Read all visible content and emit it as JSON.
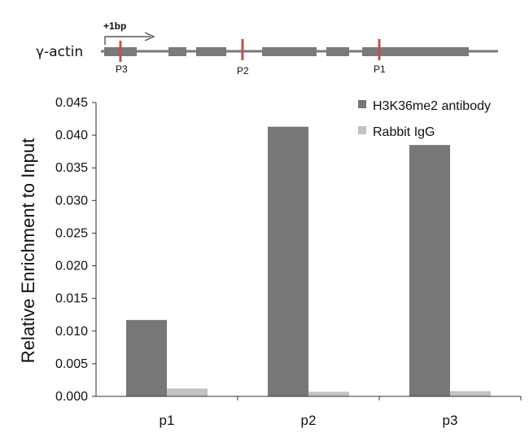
{
  "gene_map": {
    "gene_label": "γ-actin",
    "tss_label": "+1bp",
    "sites": [
      {
        "label": "P3"
      },
      {
        "label": "P2"
      },
      {
        "label": "P1"
      }
    ],
    "exon_color": "#7a7a7a",
    "site_color": "#c0504d"
  },
  "chart_data": {
    "type": "bar",
    "categories": [
      "p1",
      "p2",
      "p3"
    ],
    "series": [
      {
        "name": "H3K36me2 antibody",
        "color": "#777777",
        "values": [
          0.0117,
          0.0413,
          0.0385
        ]
      },
      {
        "name": "Rabbit IgG",
        "color": "#c2c2c2",
        "values": [
          0.0012,
          0.0007,
          0.0008
        ]
      }
    ],
    "ylabel": "Relative Enrichment to Input",
    "xlabel": "",
    "ylim": [
      0,
      0.045
    ],
    "yticks": [
      "0.000",
      "0.005",
      "0.010",
      "0.015",
      "0.020",
      "0.025",
      "0.030",
      "0.035",
      "0.040",
      "0.045"
    ],
    "grid": false,
    "legend_position": "top-right"
  }
}
